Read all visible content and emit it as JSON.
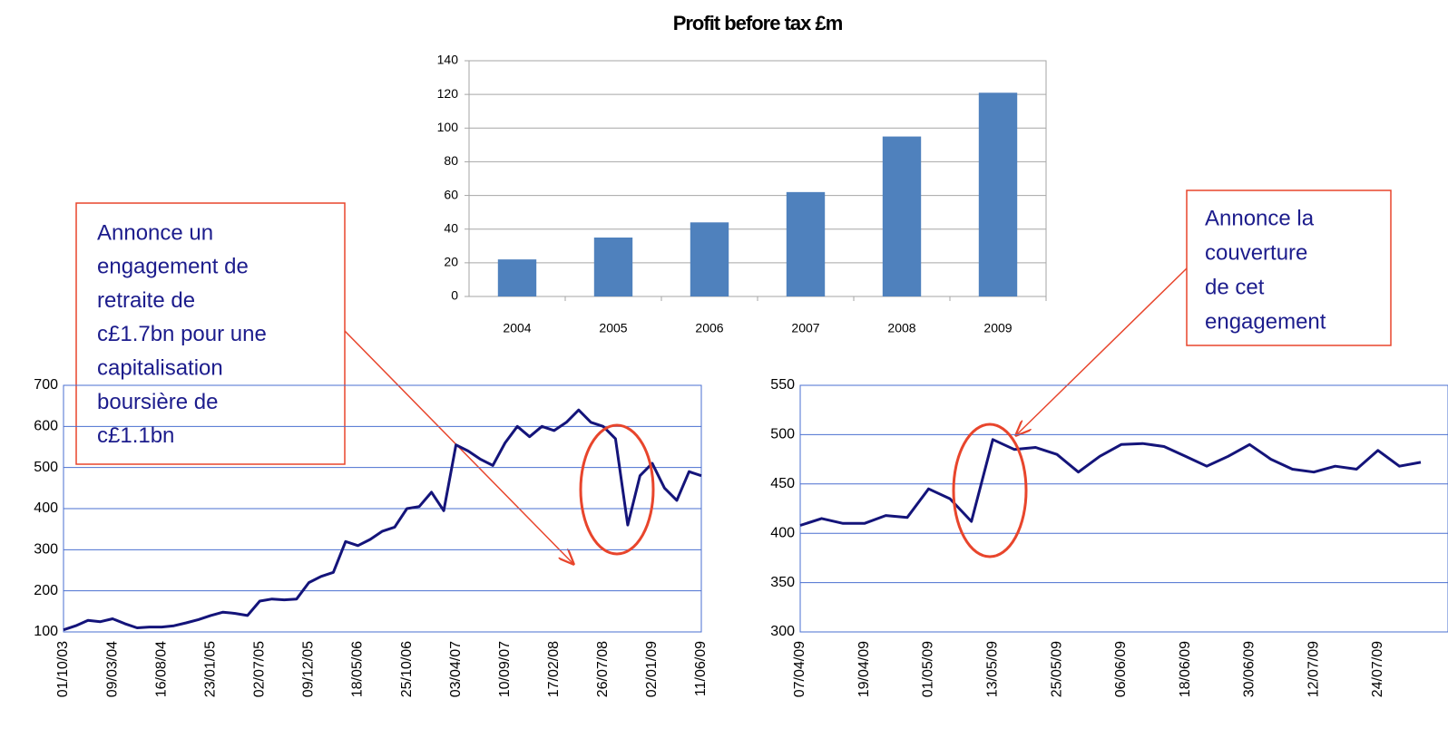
{
  "chart_data": [
    {
      "type": "bar",
      "title": "Profit before tax £m",
      "categories": [
        "2004",
        "2005",
        "2006",
        "2007",
        "2008",
        "2009"
      ],
      "values": [
        22,
        35,
        44,
        62,
        95,
        121
      ],
      "color": "#4f81bd",
      "ylim": [
        0,
        140
      ],
      "yticks": [
        0,
        20,
        40,
        60,
        80,
        100,
        120,
        140
      ],
      "grid": true
    },
    {
      "type": "line",
      "categories": [
        "01/10/03",
        null,
        null,
        null,
        "09/03/04",
        null,
        null,
        null,
        "16/08/04",
        null,
        null,
        null,
        "23/01/05",
        null,
        null,
        null,
        "02/07/05",
        null,
        null,
        null,
        "09/12/05",
        null,
        null,
        null,
        "18/05/06",
        null,
        null,
        null,
        "25/10/06",
        null,
        null,
        null,
        "03/04/07",
        null,
        null,
        null,
        "10/09/07",
        null,
        null,
        null,
        "17/02/08",
        null,
        null,
        null,
        "26/07/08",
        null,
        null,
        null,
        "02/01/09",
        null,
        null,
        null,
        "11/06/09"
      ],
      "values": [
        105,
        115,
        128,
        125,
        132,
        120,
        110,
        112,
        112,
        115,
        122,
        130,
        140,
        148,
        145,
        140,
        175,
        180,
        178,
        180,
        220,
        235,
        245,
        320,
        310,
        325,
        345,
        355,
        400,
        405,
        440,
        395,
        555,
        540,
        520,
        505,
        560,
        600,
        575,
        600,
        590,
        610,
        640,
        610,
        600,
        570,
        360,
        480,
        510,
        450,
        420,
        490,
        480
      ],
      "color": "#14147a",
      "ylim": [
        100,
        700
      ],
      "yticks": [
        100,
        200,
        300,
        400,
        500,
        600,
        700
      ],
      "grid": true
    },
    {
      "type": "line",
      "categories": [
        "07/04/09",
        null,
        null,
        "19/04/09",
        null,
        null,
        "01/05/09",
        null,
        null,
        "13/05/09",
        null,
        null,
        "25/05/09",
        null,
        null,
        "06/06/09",
        null,
        null,
        "18/06/09",
        null,
        null,
        "30/06/09",
        null,
        null,
        "12/07/09",
        null,
        null,
        "24/07/09",
        null,
        null
      ],
      "values": [
        408,
        415,
        410,
        410,
        418,
        416,
        445,
        435,
        412,
        495,
        485,
        487,
        480,
        462,
        478,
        490,
        491,
        488,
        478,
        468,
        478,
        490,
        475,
        465,
        462,
        468,
        465,
        484,
        468,
        472
      ],
      "color": "#14147a",
      "ylim": [
        300,
        550
      ],
      "yticks": [
        300,
        350,
        400,
        450,
        500,
        550
      ],
      "grid": true
    }
  ],
  "annotations": [
    {
      "lines": [
        "Annonce un",
        "engagement de",
        "retraite de",
        "c£1.7bn pour une",
        "capitalisation",
        "boursière de",
        "c£1.1bn"
      ]
    },
    {
      "lines": [
        "Annonce la",
        "couverture",
        "de cet",
        "engagement"
      ]
    }
  ]
}
